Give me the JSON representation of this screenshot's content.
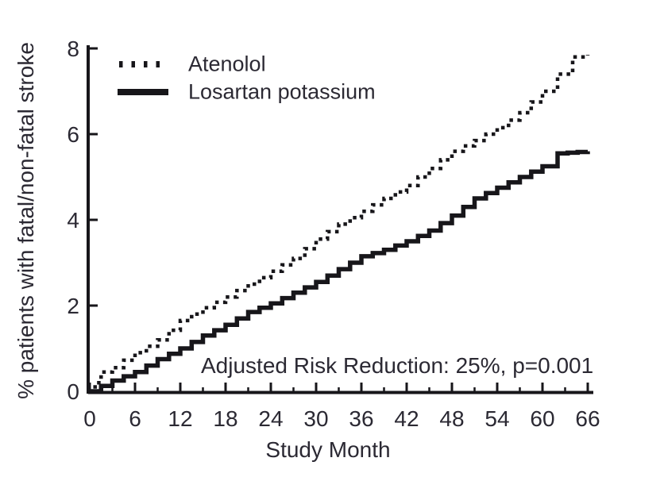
{
  "figure": {
    "background": "#ffffff",
    "ink_color": "#17161a",
    "text_color": "#2b2933"
  },
  "chart_data": {
    "type": "line",
    "subtype": "step",
    "title": "",
    "xlabel": "Study Month",
    "ylabel": "% patients with fatal/non-fatal stroke",
    "annotation": "Adjusted Risk Reduction: 25%, p=0.001",
    "xlim": [
      0,
      66
    ],
    "ylim": [
      0,
      8
    ],
    "grid": false,
    "legend_position": "upper-left-inside",
    "x_major_ticks": [
      0,
      6,
      12,
      18,
      24,
      30,
      36,
      42,
      48,
      54,
      60,
      66
    ],
    "x_minor_ticks": [
      3,
      9,
      15,
      21,
      27,
      33,
      39,
      45,
      51,
      57,
      63
    ],
    "y_ticks": [
      0,
      2,
      4,
      6,
      8
    ],
    "series": [
      {
        "name": "Atenolol",
        "style": "dotted",
        "x": [
          0,
          0.7,
          1.5,
          3,
          6,
          9,
          12,
          15,
          18,
          21,
          24,
          27,
          30,
          33,
          36,
          39,
          42,
          45,
          48,
          51,
          54,
          57,
          60,
          62,
          64,
          66
        ],
        "values": [
          0,
          0.2,
          0.45,
          0.55,
          0.9,
          1.2,
          1.65,
          1.95,
          2.2,
          2.5,
          2.8,
          3.1,
          3.55,
          3.9,
          4.2,
          4.5,
          4.8,
          5.2,
          5.6,
          5.85,
          6.15,
          6.5,
          7.0,
          7.4,
          7.8,
          7.85
        ]
      },
      {
        "name": "Losartan potassium",
        "style": "solid",
        "x": [
          0,
          3,
          6,
          9,
          12,
          15,
          18,
          21,
          24,
          27,
          30,
          33,
          36,
          39,
          42,
          45,
          48,
          51,
          54,
          57,
          60,
          62,
          66
        ],
        "values": [
          0,
          0.25,
          0.45,
          0.75,
          1.0,
          1.3,
          1.55,
          1.85,
          2.05,
          2.3,
          2.55,
          2.85,
          3.15,
          3.3,
          3.5,
          3.75,
          4.1,
          4.5,
          4.75,
          5.0,
          5.25,
          5.55,
          5.6
        ]
      }
    ]
  },
  "legend": {
    "items": [
      {
        "label": "Atenolol",
        "sample": "dotted-line"
      },
      {
        "label": "Losartan potassium",
        "sample": "solid-line"
      }
    ]
  }
}
